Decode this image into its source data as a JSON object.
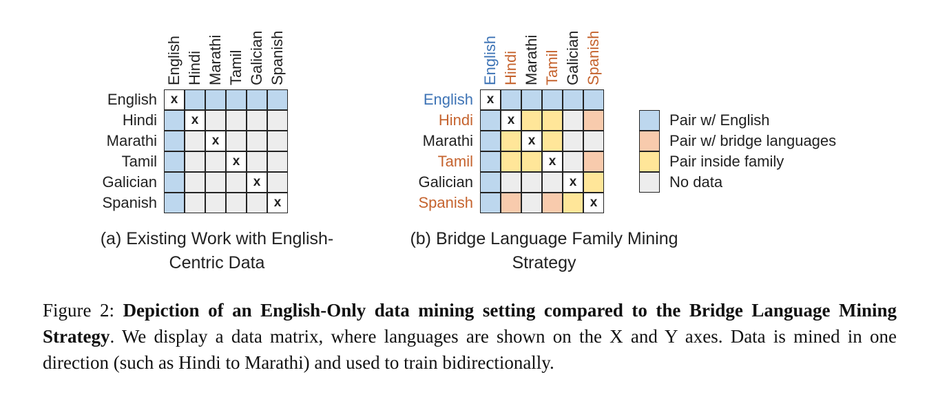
{
  "colors": {
    "english": "#bdd7ee",
    "bridge": "#f8cbad",
    "family": "#ffe699",
    "none": "#ededed",
    "white": "#ffffff",
    "text": "#222222",
    "blue_label": "#3d73b5",
    "orange_label": "#c5632e"
  },
  "panel_a": {
    "languages": [
      "English",
      "Hindi",
      "Marathi",
      "Tamil",
      "Galician",
      "Spanish"
    ],
    "caption_line1": "(a) Existing Work with English-",
    "caption_line2": "Centric Data",
    "mark": "x"
  },
  "panel_b": {
    "languages": [
      "English",
      "Hindi",
      "Marathi",
      "Tamil",
      "Galician",
      "Spanish"
    ],
    "label_colors": [
      "blue",
      "orange",
      "black",
      "orange",
      "black",
      "orange"
    ],
    "caption_line1": "(b) Bridge Language Family Mining",
    "caption_line2": "Strategy",
    "mark": "x",
    "matrix": [
      [
        "x",
        "E",
        "E",
        "E",
        "E",
        "E"
      ],
      [
        "E",
        "x",
        "F",
        "F",
        "N",
        "B"
      ],
      [
        "E",
        "F",
        "x",
        "F",
        "N",
        "N"
      ],
      [
        "E",
        "F",
        "F",
        "x",
        "N",
        "B"
      ],
      [
        "E",
        "N",
        "N",
        "N",
        "x",
        "F"
      ],
      [
        "E",
        "B",
        "N",
        "B",
        "F",
        "x"
      ]
    ]
  },
  "legend": [
    {
      "key": "english",
      "label": "Pair w/ English"
    },
    {
      "key": "bridge",
      "label": "Pair w/ bridge languages"
    },
    {
      "key": "family",
      "label": "Pair inside family"
    },
    {
      "key": "none",
      "label": "No data"
    }
  ],
  "caption": {
    "prefix": "Figure 2: ",
    "bold": "Depiction of an English-Only data mining setting compared to the Bridge Language Mining Strategy",
    "rest": ". We display a data matrix, where languages are shown on the X and Y axes. Data is mined in one direction (such as Hindi to Marathi) and used to train bidirectionally."
  }
}
